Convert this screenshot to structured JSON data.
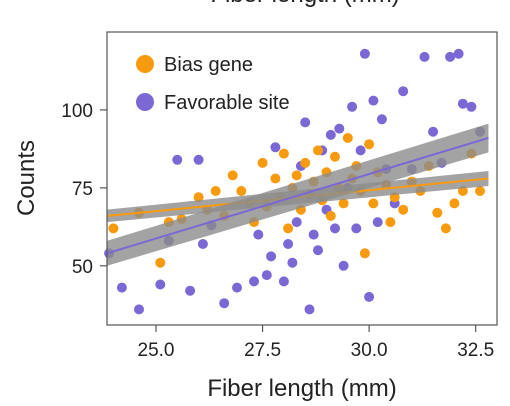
{
  "chart_data": {
    "type": "scatter",
    "title": "Fiber length (mm)",
    "xlabel": "Fiber length (mm)",
    "ylabel": "Counts",
    "xlim": [
      23.85,
      33.0
    ],
    "ylim": [
      31,
      125
    ],
    "x_ticks": [
      25.0,
      27.5,
      30.0,
      32.5
    ],
    "x_tick_labels": [
      "25.0",
      "27.5",
      "30.0",
      "32.5"
    ],
    "y_ticks": [
      50,
      75,
      100
    ],
    "y_tick_labels": [
      "50",
      "75",
      "100"
    ],
    "grid": false,
    "legend_position": "top-left",
    "series": [
      {
        "name": "Bias gene",
        "color": "#F89A0E",
        "points": [
          [
            24.0,
            62
          ],
          [
            24.6,
            67
          ],
          [
            25.1,
            51
          ],
          [
            25.3,
            64
          ],
          [
            25.6,
            65
          ],
          [
            26.0,
            72
          ],
          [
            26.2,
            68
          ],
          [
            26.4,
            74
          ],
          [
            26.6,
            66
          ],
          [
            26.8,
            79
          ],
          [
            27.0,
            74
          ],
          [
            27.2,
            70
          ],
          [
            27.3,
            64
          ],
          [
            27.5,
            83
          ],
          [
            27.6,
            69
          ],
          [
            27.8,
            78
          ],
          [
            27.9,
            72
          ],
          [
            28.0,
            86
          ],
          [
            28.1,
            62
          ],
          [
            28.2,
            75
          ],
          [
            28.3,
            79
          ],
          [
            28.4,
            68
          ],
          [
            28.5,
            83
          ],
          [
            28.6,
            73
          ],
          [
            28.7,
            77
          ],
          [
            28.8,
            87
          ],
          [
            28.9,
            71
          ],
          [
            29.0,
            80
          ],
          [
            29.1,
            66
          ],
          [
            29.2,
            85
          ],
          [
            29.3,
            75
          ],
          [
            29.4,
            70
          ],
          [
            29.5,
            91
          ],
          [
            29.6,
            78
          ],
          [
            29.7,
            82
          ],
          [
            29.8,
            74
          ],
          [
            29.9,
            54
          ],
          [
            30.0,
            89
          ],
          [
            30.1,
            70
          ],
          [
            30.2,
            80
          ],
          [
            30.4,
            76
          ],
          [
            30.5,
            64
          ],
          [
            30.6,
            72
          ],
          [
            30.8,
            68
          ],
          [
            31.0,
            77
          ],
          [
            31.2,
            74
          ],
          [
            31.4,
            82
          ],
          [
            31.6,
            67
          ],
          [
            31.8,
            62
          ],
          [
            32.0,
            70
          ],
          [
            32.2,
            74
          ],
          [
            32.4,
            86
          ],
          [
            32.6,
            74
          ]
        ]
      },
      {
        "name": "Favorable site",
        "color": "#7B68D4",
        "points": [
          [
            23.9,
            54
          ],
          [
            24.2,
            43
          ],
          [
            24.6,
            36
          ],
          [
            25.1,
            44
          ],
          [
            25.3,
            58
          ],
          [
            25.5,
            84
          ],
          [
            25.8,
            42
          ],
          [
            26.0,
            84
          ],
          [
            26.1,
            57
          ],
          [
            26.3,
            63
          ],
          [
            26.6,
            38
          ],
          [
            26.9,
            43
          ],
          [
            27.3,
            45
          ],
          [
            27.4,
            60
          ],
          [
            27.6,
            47
          ],
          [
            27.7,
            53
          ],
          [
            27.8,
            88
          ],
          [
            28.0,
            45
          ],
          [
            28.1,
            57
          ],
          [
            28.2,
            51
          ],
          [
            28.3,
            64
          ],
          [
            28.4,
            82
          ],
          [
            28.5,
            96
          ],
          [
            28.6,
            36
          ],
          [
            28.7,
            60
          ],
          [
            28.8,
            55
          ],
          [
            28.9,
            87
          ],
          [
            29.0,
            68
          ],
          [
            29.1,
            92
          ],
          [
            29.2,
            62
          ],
          [
            29.3,
            94
          ],
          [
            29.4,
            50
          ],
          [
            29.5,
            75
          ],
          [
            29.6,
            101
          ],
          [
            29.7,
            62
          ],
          [
            29.8,
            87
          ],
          [
            29.9,
            118
          ],
          [
            30.0,
            40
          ],
          [
            30.1,
            103
          ],
          [
            30.2,
            64
          ],
          [
            30.3,
            97
          ],
          [
            30.4,
            81
          ],
          [
            30.6,
            70
          ],
          [
            30.8,
            106
          ],
          [
            31.0,
            81
          ],
          [
            31.3,
            117
          ],
          [
            31.5,
            93
          ],
          [
            31.7,
            83
          ],
          [
            31.9,
            117
          ],
          [
            32.1,
            118
          ],
          [
            32.2,
            102
          ],
          [
            32.4,
            101
          ],
          [
            32.6,
            93
          ]
        ]
      }
    ],
    "fits": [
      {
        "series": "Bias gene",
        "color": "#F89A0E",
        "x": [
          23.85,
          32.8
        ],
        "y": [
          66,
          78
        ],
        "band": [
          2.0,
          2.4
        ]
      },
      {
        "series": "Favorable site",
        "color": "#7B68D4",
        "x": [
          23.85,
          32.8
        ],
        "y": [
          54,
          91
        ],
        "band": [
          4.0,
          4.6
        ]
      }
    ]
  }
}
